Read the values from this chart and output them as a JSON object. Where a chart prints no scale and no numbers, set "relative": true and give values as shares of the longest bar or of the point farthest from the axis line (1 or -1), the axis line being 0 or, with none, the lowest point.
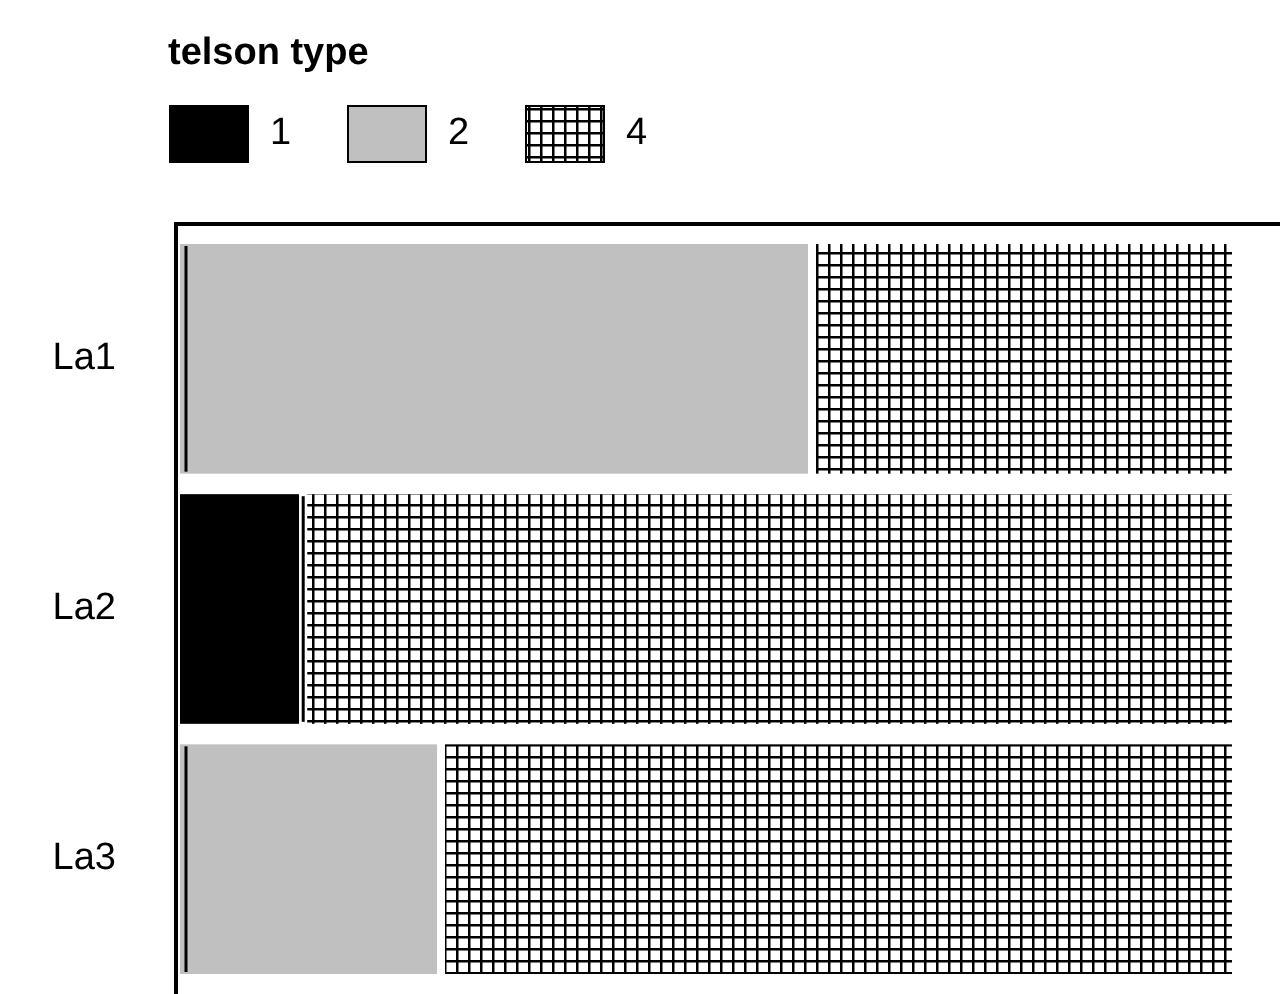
{
  "chart_data": {
    "type": "bar",
    "orientation": "horizontal",
    "stacked": true,
    "relative": true,
    "legend_title": "telson type",
    "legend": "top left",
    "categories": [
      "La1",
      "La2",
      "La3"
    ],
    "series": [
      {
        "name": "1",
        "color": "#000000",
        "values": [
          0,
          0.12,
          0
        ]
      },
      {
        "name": "2",
        "color": "#c0c0c0",
        "values": [
          0.6,
          0,
          0.25
        ]
      },
      {
        "name": "4",
        "color": "#ffffff",
        "values": [
          0.4,
          0.88,
          0.75
        ]
      }
    ]
  }
}
